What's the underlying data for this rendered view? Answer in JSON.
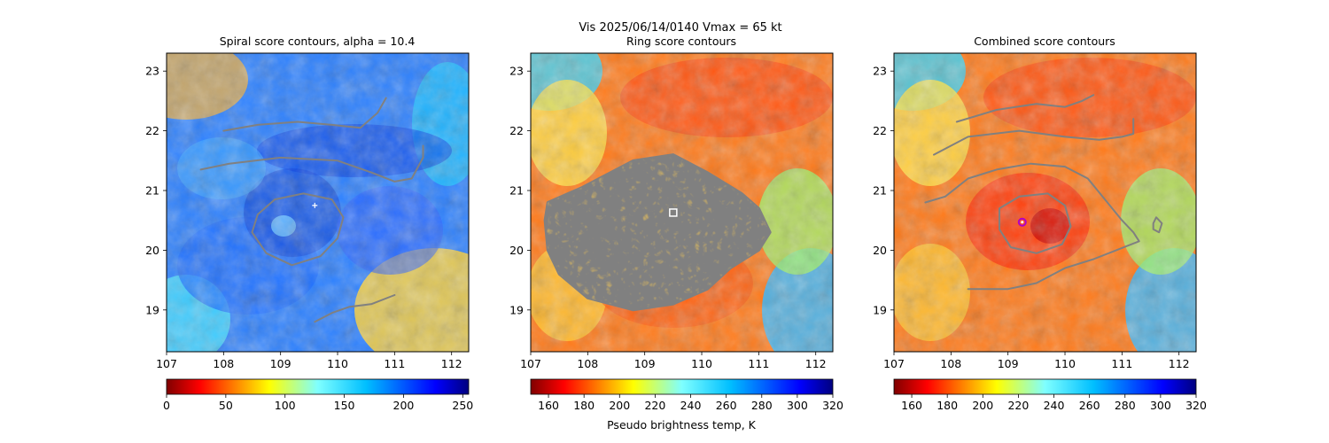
{
  "suptitle_line1": "Vis  2025/06/14/0140    Vmax = 65 kt",
  "colorbar_label": "Pseudo brightness temp, K",
  "colors": {
    "contour": "#808080",
    "background": "#ffffff",
    "marker_circle": "#b000c8",
    "marker_star": "#ffffff"
  },
  "chart_data": [
    {
      "type": "heatmap",
      "title": "Spiral score contours, alpha = 10.4",
      "xlim": [
        107,
        112.3
      ],
      "ylim": [
        18.3,
        23.3
      ],
      "xticks": [
        "107",
        "108",
        "109",
        "110",
        "111",
        "112"
      ],
      "yticks": [
        "19",
        "20",
        "21",
        "22",
        "23"
      ],
      "colormap": "jet",
      "colormap_reversed": false,
      "colorbar_range": [
        0,
        255
      ],
      "colorbar_ticks": [
        "0",
        "50",
        "100",
        "150",
        "200",
        "250"
      ],
      "center_lon": 109.2,
      "center_lat": 20.5,
      "contours": [
        {
          "name": "contour-eye-ring",
          "points": [
            [
              108.6,
              20.6
            ],
            [
              108.9,
              20.85
            ],
            [
              109.4,
              20.95
            ],
            [
              109.9,
              20.85
            ],
            [
              110.1,
              20.55
            ],
            [
              110.0,
              20.2
            ],
            [
              109.7,
              19.9
            ],
            [
              109.2,
              19.75
            ],
            [
              108.75,
              19.95
            ],
            [
              108.5,
              20.3
            ],
            [
              108.6,
              20.6
            ]
          ]
        },
        {
          "name": "contour-spiral-band",
          "points": [
            [
              107.6,
              21.35
            ],
            [
              108.1,
              21.45
            ],
            [
              109.0,
              21.55
            ],
            [
              110.0,
              21.5
            ],
            [
              110.6,
              21.3
            ],
            [
              111.0,
              21.15
            ],
            [
              111.3,
              21.2
            ],
            [
              111.5,
              21.55
            ],
            [
              111.5,
              21.75
            ]
          ]
        },
        {
          "name": "contour-north-band",
          "points": [
            [
              108.0,
              22.0
            ],
            [
              108.6,
              22.1
            ],
            [
              109.3,
              22.15
            ],
            [
              109.9,
              22.1
            ],
            [
              110.4,
              22.05
            ],
            [
              110.7,
              22.3
            ],
            [
              110.85,
              22.55
            ]
          ]
        },
        {
          "name": "contour-south-band",
          "points": [
            [
              109.6,
              18.8
            ],
            [
              109.9,
              18.95
            ],
            [
              110.2,
              19.05
            ],
            [
              110.6,
              19.1
            ],
            [
              111.0,
              19.25
            ]
          ]
        }
      ],
      "marker": {
        "type": "star",
        "lon": 109.6,
        "lat": 20.75
      }
    },
    {
      "type": "heatmap",
      "title": "Ring score contours",
      "xlim": [
        107,
        112.3
      ],
      "ylim": [
        18.3,
        23.3
      ],
      "xticks": [
        "107",
        "108",
        "109",
        "110",
        "111",
        "112"
      ],
      "yticks": [
        "19",
        "20",
        "21",
        "22",
        "23"
      ],
      "colormap": "jet",
      "colormap_reversed": true,
      "colorbar_range": [
        150,
        320
      ],
      "colorbar_ticks": [
        "160",
        "180",
        "200",
        "220",
        "240",
        "260",
        "280",
        "300",
        "320"
      ],
      "center_lon": 109.2,
      "center_lat": 20.5,
      "ring_region": [
        [
          107.3,
          20.8
        ],
        [
          107.9,
          21.05
        ],
        [
          108.8,
          21.5
        ],
        [
          109.5,
          21.6
        ],
        [
          110.1,
          21.3
        ],
        [
          110.7,
          20.95
        ],
        [
          111.0,
          20.7
        ],
        [
          111.2,
          20.3
        ],
        [
          111.0,
          20.0
        ],
        [
          110.5,
          19.7
        ],
        [
          110.1,
          19.35
        ],
        [
          109.5,
          19.1
        ],
        [
          108.8,
          19.0
        ],
        [
          108.0,
          19.2
        ],
        [
          107.5,
          19.6
        ],
        [
          107.3,
          20.0
        ],
        [
          107.25,
          20.5
        ]
      ],
      "marker": {
        "type": "square",
        "lon": 109.5,
        "lat": 20.63
      }
    },
    {
      "type": "heatmap",
      "title": "Combined score contours",
      "xlim": [
        107,
        112.3
      ],
      "ylim": [
        18.3,
        23.3
      ],
      "xticks": [
        "107",
        "108",
        "109",
        "110",
        "111",
        "112"
      ],
      "yticks": [
        "19",
        "20",
        "21",
        "22",
        "23"
      ],
      "colormap": "jet",
      "colormap_reversed": true,
      "colorbar_range": [
        150,
        320
      ],
      "colorbar_ticks": [
        "160",
        "180",
        "200",
        "220",
        "240",
        "260",
        "280",
        "300",
        "320"
      ],
      "center_lon": 109.2,
      "center_lat": 20.5,
      "contours": [
        {
          "name": "contour-eye-ring",
          "points": [
            [
              108.85,
              20.7
            ],
            [
              109.2,
              20.9
            ],
            [
              109.7,
              20.95
            ],
            [
              110.0,
              20.75
            ],
            [
              110.1,
              20.4
            ],
            [
              109.95,
              20.1
            ],
            [
              109.5,
              19.95
            ],
            [
              109.05,
              20.05
            ],
            [
              108.85,
              20.35
            ],
            [
              108.85,
              20.7
            ]
          ]
        },
        {
          "name": "contour-outer-ring",
          "points": [
            [
              107.55,
              20.8
            ],
            [
              107.9,
              20.9
            ],
            [
              108.3,
              21.2
            ],
            [
              108.8,
              21.35
            ],
            [
              109.4,
              21.45
            ],
            [
              110.0,
              21.4
            ],
            [
              110.4,
              21.2
            ],
            [
              110.7,
              20.85
            ],
            [
              111.0,
              20.5
            ],
            [
              111.2,
              20.3
            ],
            [
              111.3,
              20.15
            ],
            [
              110.9,
              20.0
            ],
            [
              110.5,
              19.85
            ],
            [
              110.0,
              19.7
            ],
            [
              109.5,
              19.45
            ],
            [
              109.0,
              19.35
            ],
            [
              108.3,
              19.35
            ]
          ]
        },
        {
          "name": "contour-mid-band",
          "points": [
            [
              107.7,
              21.6
            ],
            [
              108.3,
              21.9
            ],
            [
              109.2,
              22.0
            ],
            [
              110.0,
              21.9
            ],
            [
              110.6,
              21.85
            ],
            [
              111.0,
              21.9
            ],
            [
              111.2,
              21.95
            ],
            [
              111.2,
              22.2
            ]
          ]
        },
        {
          "name": "contour-north-band",
          "points": [
            [
              108.1,
              22.15
            ],
            [
              108.8,
              22.35
            ],
            [
              109.5,
              22.45
            ],
            [
              110.0,
              22.4
            ],
            [
              110.3,
              22.5
            ],
            [
              110.5,
              22.6
            ]
          ]
        },
        {
          "name": "contour-east-blob",
          "points": [
            [
              111.55,
              20.45
            ],
            [
              111.6,
              20.55
            ],
            [
              111.7,
              20.45
            ],
            [
              111.65,
              20.3
            ],
            [
              111.55,
              20.35
            ],
            [
              111.55,
              20.45
            ]
          ]
        }
      ],
      "marker": {
        "type": "circle",
        "lon": 109.25,
        "lat": 20.47
      }
    }
  ]
}
